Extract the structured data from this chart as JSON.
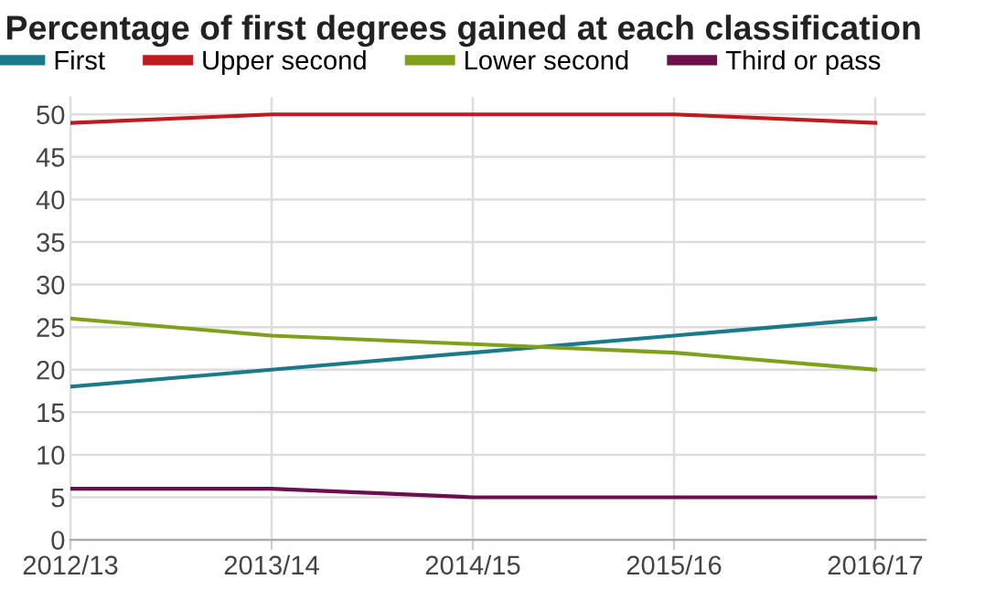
{
  "chart_data": {
    "type": "line",
    "title": "Percentage of first degrees gained at each classification",
    "categories": [
      "2012/13",
      "2013/14",
      "2014/15",
      "2015/16",
      "2016/17"
    ],
    "series": [
      {
        "name": "First",
        "color": "#1a7a8a",
        "values": [
          18,
          20,
          22,
          24,
          26
        ]
      },
      {
        "name": "Upper second",
        "color": "#c0191e",
        "values": [
          49,
          50,
          50,
          50,
          49
        ]
      },
      {
        "name": "Lower second",
        "color": "#7fa01a",
        "values": [
          26,
          24,
          23,
          22,
          20
        ]
      },
      {
        "name": "Third or pass",
        "color": "#6b0f4e",
        "values": [
          6,
          6,
          5,
          5,
          5
        ]
      }
    ],
    "ylim": [
      0,
      52
    ],
    "yticks": [
      0,
      5,
      10,
      15,
      20,
      25,
      30,
      35,
      40,
      45,
      50
    ],
    "grid": true,
    "legend": "top left",
    "marker": "none",
    "line_style": "solid"
  }
}
